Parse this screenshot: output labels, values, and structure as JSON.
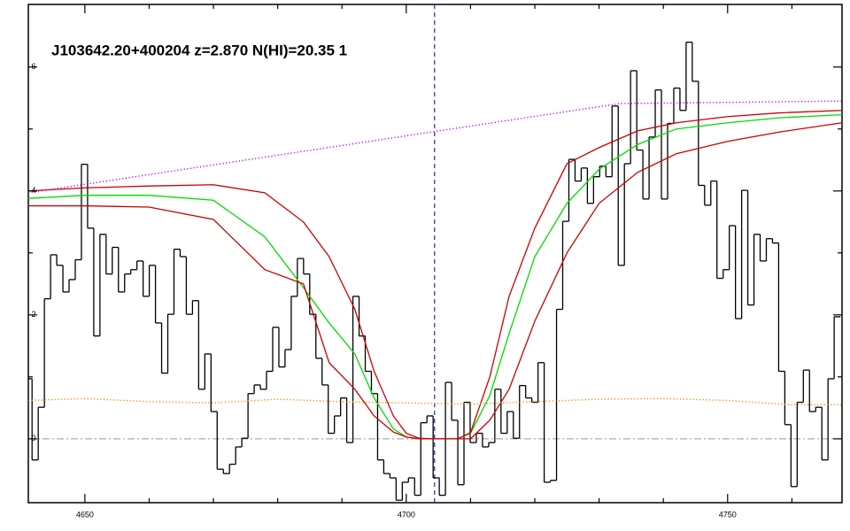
{
  "chart_data": {
    "type": "line",
    "title": "J103642.20+400204 z=2.870 N(HI)=20.35 1",
    "xlim": [
      4641.2,
      4767.8
    ],
    "ylim": [
      -1.03,
      7.01
    ],
    "xticks": [
      4650,
      4700,
      4750
    ],
    "yticks": [
      0,
      2,
      4,
      6
    ],
    "xminorticks": [
      4660,
      4670,
      4680,
      4690,
      4710,
      4720,
      4730,
      4740,
      4760
    ],
    "yminorticks": [
      1,
      3,
      5
    ],
    "vline": 4704.4,
    "hline": 0,
    "series": [
      {
        "color": "#000000",
        "style": "solid",
        "drawstyle": "steps-mid",
        "x": [
          4641.3,
          4642.26,
          4643.22,
          4644.18,
          4645.14,
          4646.1,
          4647.06,
          4648.02,
          4648.98,
          4649.94,
          4650.9,
          4651.86,
          4652.82,
          4653.78,
          4654.74,
          4655.7,
          4656.66,
          4657.62,
          4658.58,
          4659.54,
          4660.5,
          4661.46,
          4662.42,
          4663.38,
          4664.34,
          4665.3,
          4666.26,
          4667.22,
          4668.18,
          4669.14,
          4670.1,
          4671.06,
          4672.02,
          4672.98,
          4673.94,
          4674.9,
          4675.86,
          4676.82,
          4677.78,
          4678.74,
          4679.7,
          4680.66,
          4681.62,
          4682.58,
          4683.54,
          4684.5,
          4685.46,
          4686.42,
          4687.38,
          4688.34,
          4689.3,
          4690.26,
          4691.22,
          4692.18,
          4693.14,
          4694.1,
          4695.06,
          4696.02,
          4696.98,
          4697.94,
          4698.9,
          4699.86,
          4700.82,
          4701.78,
          4702.74,
          4703.7,
          4704.66,
          4705.62,
          4706.58,
          4707.54,
          4708.5,
          4709.46,
          4710.42,
          4711.38,
          4712.34,
          4713.3,
          4714.26,
          4715.22,
          4716.18,
          4717.14,
          4718.1,
          4719.06,
          4720.02,
          4720.98,
          4721.94,
          4722.9,
          4723.86,
          4724.82,
          4725.78,
          4726.74,
          4727.7,
          4728.66,
          4729.62,
          4730.58,
          4731.54,
          4732.5,
          4733.46,
          4734.42,
          4735.38,
          4736.34,
          4737.3,
          4738.26,
          4739.22,
          4740.18,
          4741.14,
          4742.1,
          4743.06,
          4744.02,
          4744.98,
          4745.94,
          4746.9,
          4747.86,
          4748.82,
          4749.78,
          4750.74,
          4751.7,
          4752.66,
          4753.62,
          4754.58,
          4755.54,
          4756.5,
          4757.46,
          4758.42,
          4759.38,
          4760.34,
          4761.3,
          4762.26,
          4763.22,
          4764.18,
          4765.14,
          4766.1,
          4767.06
        ],
        "values": [
          0.97,
          -0.34,
          0.51,
          2.26,
          2.97,
          2.8,
          2.37,
          2.57,
          2.89,
          4.43,
          3.4,
          1.66,
          3.3,
          2.66,
          3.09,
          2.37,
          2.66,
          2.73,
          2.87,
          2.3,
          2.8,
          1.87,
          1.06,
          2.01,
          3.06,
          2.94,
          2.01,
          2.23,
          0.8,
          1.37,
          0.44,
          -0.49,
          -0.56,
          -0.41,
          -0.13,
          0.01,
          0.73,
          0.87,
          0.8,
          1.09,
          1.8,
          1.16,
          1.44,
          2.3,
          2.91,
          2.66,
          2.01,
          1.3,
          0.87,
          0.09,
          0.37,
          0.66,
          -0.06,
          2.3,
          1.66,
          1.09,
          0.73,
          -0.34,
          -0.56,
          -0.63,
          -0.99,
          -0.7,
          -0.63,
          -0.91,
          0.26,
          0.37,
          -0.63,
          -0.91,
          0.91,
          0.3,
          -0.74,
          0.59,
          -0.06,
          0.09,
          -0.13,
          -0.06,
          0.8,
          0.09,
          0.44,
          0.01,
          0.86,
          0.66,
          0.59,
          1.23,
          -0.7,
          -0.67,
          2.09,
          3.51,
          4.51,
          4.16,
          4.37,
          3.8,
          4.23,
          4.4,
          4.23,
          5.37,
          2.8,
          4.44,
          5.94,
          4.66,
          3.87,
          4.87,
          5.63,
          3.87,
          5.09,
          5.66,
          5.3,
          6.4,
          5.77,
          4.09,
          3.77,
          4.16,
          2.59,
          2.73,
          3.44,
          1.94,
          4.01,
          2.16,
          3.3,
          2.87,
          3.23,
          3.16,
          1.09,
          0.23,
          -0.77,
          0.59,
          1.11,
          0.44,
          0.51,
          -0.34,
          0.97,
          1.97
        ]
      },
      {
        "color": "#00dd00",
        "style": "solid",
        "x": [
          4641.2,
          4650,
          4660,
          4670,
          4678,
          4684,
          4688,
          4692,
          4695,
          4698,
          4700,
          4702,
          4704,
          4706,
          4708,
          4710,
          4713,
          4716,
          4720,
          4725,
          4730,
          4736,
          4742,
          4750,
          4758,
          4767.8
        ],
        "values": [
          3.88,
          3.93,
          3.93,
          3.85,
          3.26,
          2.44,
          1.87,
          1.37,
          0.66,
          0.16,
          0.03,
          0,
          0,
          0,
          0,
          0.09,
          0.7,
          1.7,
          2.94,
          3.8,
          4.35,
          4.75,
          5.0,
          5.1,
          5.18,
          5.23
        ]
      },
      {
        "color": "#cc0000",
        "style": "solid",
        "x": [
          4641.2,
          4650,
          4660,
          4670,
          4678,
          4684,
          4688,
          4692,
          4695,
          4698,
          4700,
          4702,
          4704,
          4706,
          4708,
          4710,
          4713,
          4716,
          4720,
          4725,
          4730,
          4736,
          4742,
          4750,
          4758,
          4767.8
        ],
        "values": [
          4.0,
          4.05,
          4.08,
          4.1,
          3.97,
          3.5,
          2.94,
          2.09,
          1.09,
          0.37,
          0.09,
          0.01,
          0,
          0,
          0,
          0.1,
          1.0,
          2.3,
          3.4,
          4.44,
          4.7,
          4.97,
          5.1,
          5.2,
          5.26,
          5.3
        ]
      },
      {
        "color": "#cc0000",
        "style": "solid",
        "x": [
          4641.2,
          4650,
          4660,
          4670,
          4678,
          4684,
          4688,
          4692,
          4695,
          4698,
          4700,
          4702,
          4704,
          4706,
          4708,
          4710,
          4713,
          4716,
          4720,
          4725,
          4730,
          4736,
          4742,
          4750,
          4758,
          4767.8
        ],
        "values": [
          3.76,
          3.76,
          3.74,
          3.54,
          2.73,
          2.5,
          1.23,
          0.8,
          0.37,
          0.11,
          0.03,
          0,
          0,
          0,
          0,
          0,
          0.3,
          0.8,
          1.9,
          3.0,
          3.8,
          4.3,
          4.6,
          4.8,
          4.95,
          5.1
        ]
      },
      {
        "color": "#b000ff",
        "style": "dotted",
        "x": [
          4641.2,
          4733.2,
          4750,
          4767.8
        ],
        "values": [
          3.97,
          5.41,
          5.43,
          5.45
        ]
      },
      {
        "color": "#ff8000",
        "style": "dotted",
        "x": [
          4641.2,
          4650,
          4660,
          4670,
          4680,
          4690,
          4700,
          4710,
          4720,
          4730,
          4740,
          4750,
          4760,
          4767.8
        ],
        "values": [
          0.62,
          0.65,
          0.6,
          0.58,
          0.64,
          0.6,
          0.58,
          0.56,
          0.6,
          0.64,
          0.65,
          0.62,
          0.55,
          0.55
        ]
      }
    ]
  }
}
